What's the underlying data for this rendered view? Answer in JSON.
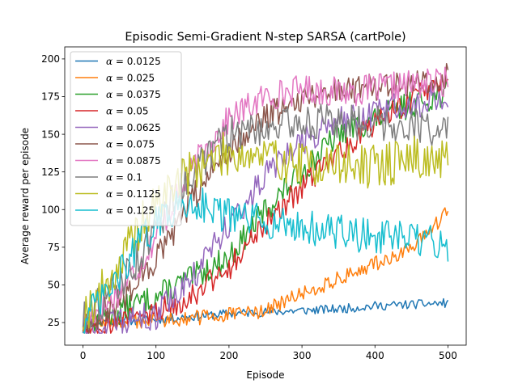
{
  "chart_data": {
    "type": "line",
    "title": "Episodic Semi-Gradient N-step SARSA (cartPole)",
    "xlabel": "Episode",
    "ylabel": "Average reward per episode",
    "xlim": [
      -25,
      525
    ],
    "ylim": [
      10,
      208
    ],
    "xticks": [
      0,
      100,
      200,
      300,
      400,
      500
    ],
    "yticks": [
      25,
      50,
      75,
      100,
      125,
      150,
      175,
      200
    ],
    "grid": false,
    "legend_position": "top-left",
    "legend_prefix": "α = ",
    "series": [
      {
        "name": "0.0125",
        "color": "#1f77b4",
        "points": [
          [
            0,
            25
          ],
          [
            50,
            26
          ],
          [
            100,
            27
          ],
          [
            150,
            29
          ],
          [
            200,
            31
          ],
          [
            250,
            32
          ],
          [
            300,
            33
          ],
          [
            350,
            34
          ],
          [
            400,
            36
          ],
          [
            450,
            37
          ],
          [
            500,
            38
          ]
        ],
        "noise": 3,
        "seed": 11
      },
      {
        "name": "0.025",
        "color": "#ff7f0e",
        "points": [
          [
            0,
            24
          ],
          [
            50,
            25
          ],
          [
            100,
            27
          ],
          [
            150,
            28
          ],
          [
            200,
            30
          ],
          [
            250,
            33
          ],
          [
            300,
            44
          ],
          [
            350,
            54
          ],
          [
            400,
            64
          ],
          [
            450,
            74
          ],
          [
            480,
            88
          ],
          [
            500,
            100
          ]
        ],
        "noise": 5,
        "seed": 12
      },
      {
        "name": "0.0375",
        "color": "#2ca02c",
        "points": [
          [
            0,
            24
          ],
          [
            30,
            28
          ],
          [
            60,
            35
          ],
          [
            100,
            42
          ],
          [
            150,
            55
          ],
          [
            200,
            68
          ],
          [
            250,
            100
          ],
          [
            300,
            125
          ],
          [
            350,
            150
          ],
          [
            400,
            160
          ],
          [
            450,
            170
          ],
          [
            500,
            178
          ]
        ],
        "noise": 9,
        "seed": 13
      },
      {
        "name": "0.05",
        "color": "#d62728",
        "points": [
          [
            0,
            22
          ],
          [
            50,
            26
          ],
          [
            100,
            32
          ],
          [
            150,
            44
          ],
          [
            200,
            62
          ],
          [
            250,
            90
          ],
          [
            300,
            115
          ],
          [
            350,
            138
          ],
          [
            400,
            158
          ],
          [
            450,
            172
          ],
          [
            500,
            185
          ]
        ],
        "noise": 9,
        "seed": 14
      },
      {
        "name": "0.0625",
        "color": "#9467bd",
        "points": [
          [
            0,
            20
          ],
          [
            50,
            24
          ],
          [
            100,
            30
          ],
          [
            150,
            55
          ],
          [
            200,
            90
          ],
          [
            250,
            122
          ],
          [
            300,
            145
          ],
          [
            350,
            158
          ],
          [
            400,
            165
          ],
          [
            450,
            170
          ],
          [
            500,
            175
          ]
        ],
        "noise": 10,
        "seed": 15
      },
      {
        "name": "0.075",
        "color": "#8c564b",
        "points": [
          [
            0,
            24
          ],
          [
            40,
            35
          ],
          [
            80,
            55
          ],
          [
            120,
            80
          ],
          [
            160,
            115
          ],
          [
            200,
            140
          ],
          [
            250,
            162
          ],
          [
            300,
            175
          ],
          [
            350,
            180
          ],
          [
            400,
            182
          ],
          [
            450,
            185
          ],
          [
            500,
            188
          ]
        ],
        "noise": 10,
        "seed": 16
      },
      {
        "name": "0.0875",
        "color": "#e377c2",
        "points": [
          [
            0,
            26
          ],
          [
            40,
            40
          ],
          [
            80,
            65
          ],
          [
            120,
            100
          ],
          [
            160,
            135
          ],
          [
            200,
            160
          ],
          [
            250,
            175
          ],
          [
            300,
            180
          ],
          [
            350,
            178
          ],
          [
            400,
            180
          ],
          [
            450,
            183
          ],
          [
            500,
            185
          ]
        ],
        "noise": 10,
        "seed": 17
      },
      {
        "name": "0.1",
        "color": "#7f7f7f",
        "points": [
          [
            0,
            28
          ],
          [
            40,
            45
          ],
          [
            80,
            70
          ],
          [
            120,
            105
          ],
          [
            160,
            130
          ],
          [
            200,
            150
          ],
          [
            250,
            155
          ],
          [
            300,
            158
          ],
          [
            350,
            158
          ],
          [
            400,
            158
          ],
          [
            450,
            156
          ],
          [
            500,
            152
          ]
        ],
        "noise": 12,
        "seed": 18
      },
      {
        "name": "0.1125",
        "color": "#bcbd22",
        "points": [
          [
            0,
            30
          ],
          [
            40,
            55
          ],
          [
            80,
            90
          ],
          [
            120,
            115
          ],
          [
            160,
            130
          ],
          [
            200,
            138
          ],
          [
            250,
            135
          ],
          [
            300,
            130
          ],
          [
            350,
            130
          ],
          [
            400,
            128
          ],
          [
            450,
            135
          ],
          [
            500,
            130
          ]
        ],
        "noise": 15,
        "seed": 19
      },
      {
        "name": "0.125",
        "color": "#17becf",
        "points": [
          [
            0,
            25
          ],
          [
            40,
            48
          ],
          [
            80,
            80
          ],
          [
            120,
            100
          ],
          [
            160,
            105
          ],
          [
            200,
            95
          ],
          [
            250,
            92
          ],
          [
            300,
            88
          ],
          [
            350,
            85
          ],
          [
            400,
            82
          ],
          [
            450,
            80
          ],
          [
            500,
            76
          ]
        ],
        "noise": 12,
        "seed": 20
      }
    ]
  }
}
